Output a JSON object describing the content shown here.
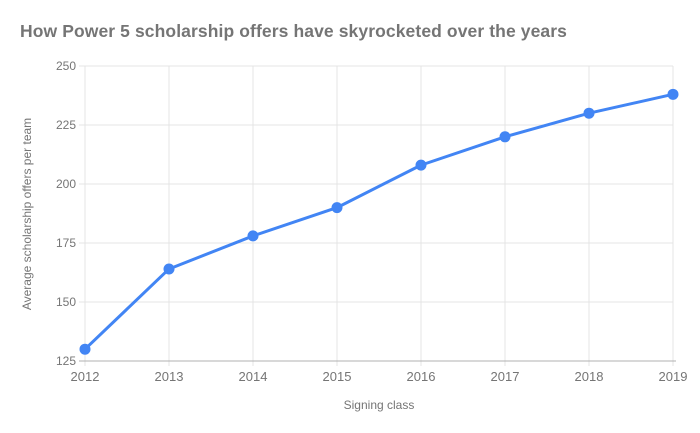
{
  "chart_data": {
    "type": "line",
    "title": "How Power 5 scholarship offers have skyrocketed over the years",
    "xlabel": "Signing class",
    "ylabel": "Average scholarship offers per team",
    "categories": [
      "2012",
      "2013",
      "2014",
      "2015",
      "2016",
      "2017",
      "2018",
      "2019"
    ],
    "series": [
      {
        "name": "Average scholarship offers per team",
        "values": [
          130,
          164,
          178,
          190,
          208,
          220,
          230,
          238
        ]
      }
    ],
    "ylim": [
      125,
      250
    ],
    "yticks": [
      125,
      150,
      175,
      200,
      225,
      250
    ],
    "grid": true,
    "legend_position": "none",
    "series_color": "#4285f4",
    "grid_color": "#e4e4e4",
    "axis_color": "#b0b0b0",
    "text_color": "#757575"
  }
}
